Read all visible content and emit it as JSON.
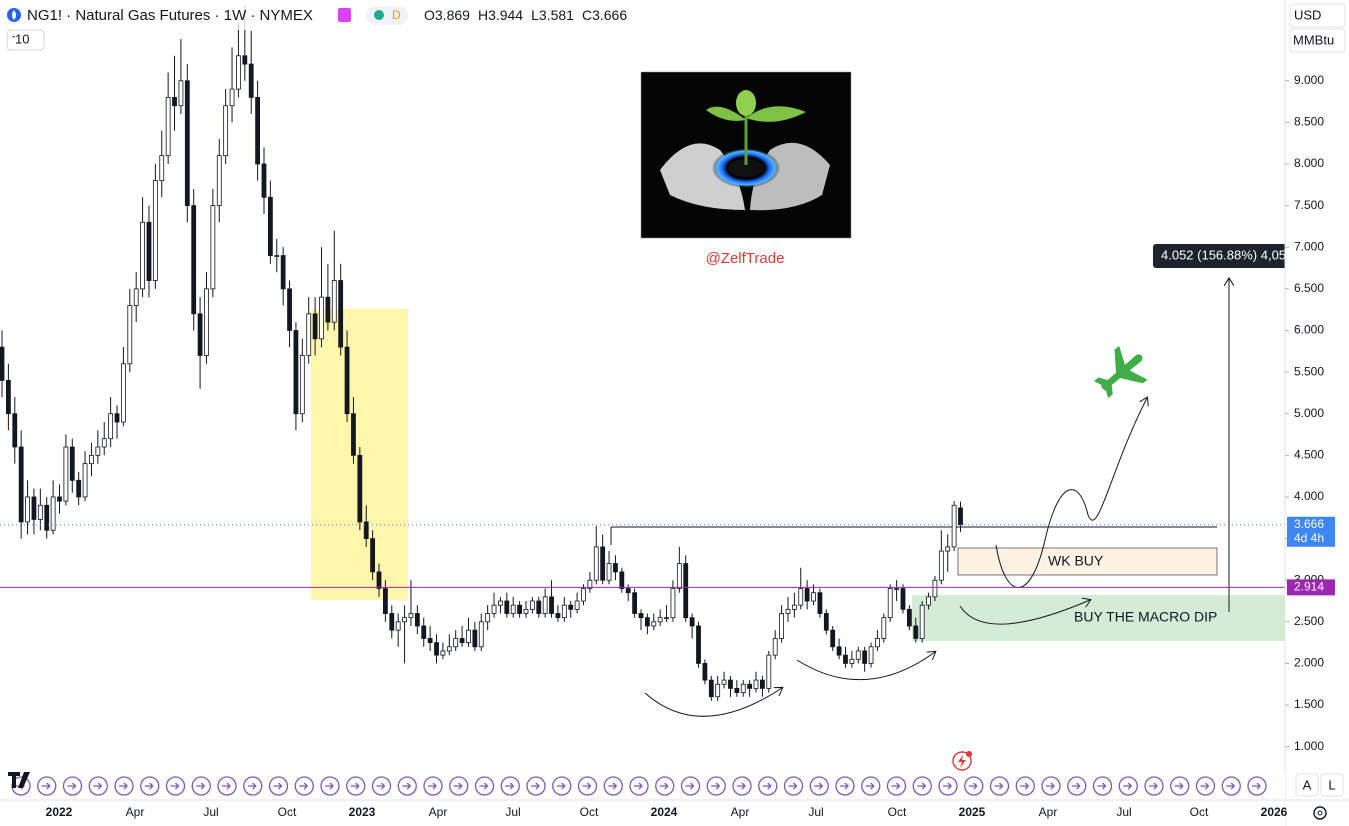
{
  "chart_data": {
    "type": "candlestick",
    "title": "NG1! · Natural Gas Futures · 1W · NYMEX",
    "badge": "D",
    "interval_box": "10",
    "currency": "USD",
    "unit": "MMBtu",
    "ohlc_legend": [
      {
        "label": "O",
        "value": 3.869
      },
      {
        "label": "H",
        "value": 3.944
      },
      {
        "label": "L",
        "value": 3.581
      },
      {
        "label": "C",
        "value": 3.666
      }
    ],
    "author": "@ZelfTrade",
    "annotations": [
      "WK BUY",
      "BUY THE MACRO DIP"
    ],
    "measure_label": "4.052 (156.88%) 4,05",
    "last_price": 3.666,
    "countdown": "4d 4h",
    "horizontal_line": 2.914,
    "ylim": [
      0.72,
      9.97
    ],
    "yticks": [
      {
        "value": 1,
        "label": "1.000"
      },
      {
        "value": 1.5,
        "label": "1.500"
      },
      {
        "value": 2,
        "label": "2.000"
      },
      {
        "value": 2.5,
        "label": "2.500"
      },
      {
        "value": 3,
        "label": "3.000"
      },
      {
        "value": 3.5,
        "label": "3.500"
      },
      {
        "value": 4,
        "label": "4.000"
      },
      {
        "value": 4.5,
        "label": "4.500"
      },
      {
        "value": 5,
        "label": "5.000"
      },
      {
        "value": 5.5,
        "label": "5.500"
      },
      {
        "value": 6,
        "label": "6.000"
      },
      {
        "value": 6.5,
        "label": "6.500"
      },
      {
        "value": 7,
        "label": "7.000"
      },
      {
        "value": 7.5,
        "label": "7.500"
      },
      {
        "value": 8,
        "label": "8.000"
      },
      {
        "value": 8.5,
        "label": "8.500"
      },
      {
        "value": 9,
        "label": "9.000"
      }
    ],
    "x_tick_labels": [
      "2022",
      "Apr",
      "Jul",
      "Oct",
      "2023",
      "Apr",
      "Jul",
      "Oct",
      "2024",
      "Apr",
      "Jul",
      "Oct",
      "2025",
      "Apr",
      "Jul",
      "Oct",
      "2026"
    ],
    "scale_buttons": [
      "A",
      "L"
    ],
    "candles": [
      [
        5.8,
        6.0,
        5.2,
        5.4
      ],
      [
        5.4,
        5.6,
        4.8,
        5.0
      ],
      [
        5.0,
        5.2,
        4.4,
        4.6
      ],
      [
        4.6,
        4.8,
        3.5,
        3.7
      ],
      [
        3.7,
        4.2,
        3.55,
        4.0
      ],
      [
        4.0,
        4.1,
        3.55,
        3.73
      ],
      [
        3.73,
        4.1,
        3.6,
        3.9
      ],
      [
        3.9,
        4.0,
        3.5,
        3.6
      ],
      [
        3.6,
        4.2,
        3.55,
        4.0
      ],
      [
        4.0,
        4.15,
        3.8,
        3.95
      ],
      [
        3.95,
        4.75,
        3.9,
        4.6
      ],
      [
        4.6,
        4.7,
        4.05,
        4.2
      ],
      [
        4.2,
        4.3,
        3.9,
        4.0
      ],
      [
        4.0,
        4.55,
        3.95,
        4.4
      ],
      [
        4.4,
        4.65,
        4.25,
        4.5
      ],
      [
        4.5,
        4.8,
        4.4,
        4.6
      ],
      [
        4.6,
        4.9,
        4.5,
        4.7
      ],
      [
        4.7,
        5.2,
        4.6,
        5.0
      ],
      [
        5.0,
        5.1,
        4.7,
        4.9
      ],
      [
        4.9,
        5.8,
        4.85,
        5.6
      ],
      [
        5.6,
        6.5,
        5.5,
        6.3
      ],
      [
        6.3,
        6.7,
        6.1,
        6.5
      ],
      [
        6.5,
        7.6,
        6.4,
        7.3
      ],
      [
        7.3,
        7.5,
        6.4,
        6.6
      ],
      [
        6.6,
        8.0,
        6.5,
        7.8
      ],
      [
        7.8,
        8.4,
        7.6,
        8.1
      ],
      [
        8.1,
        9.1,
        8.0,
        8.8
      ],
      [
        8.8,
        9.3,
        8.4,
        8.7
      ],
      [
        8.7,
        9.5,
        8.6,
        9.0
      ],
      [
        9.0,
        9.2,
        7.3,
        7.5
      ],
      [
        7.5,
        7.7,
        6.0,
        6.2
      ],
      [
        6.2,
        6.4,
        5.3,
        5.7
      ],
      [
        5.7,
        6.7,
        5.6,
        6.5
      ],
      [
        6.5,
        7.7,
        6.4,
        7.5
      ],
      [
        7.5,
        8.3,
        7.3,
        8.1
      ],
      [
        8.1,
        8.9,
        8.0,
        8.7
      ],
      [
        8.7,
        9.4,
        8.5,
        8.9
      ],
      [
        8.9,
        9.7,
        8.8,
        9.3
      ],
      [
        9.3,
        9.9,
        9.0,
        9.2
      ],
      [
        9.2,
        9.6,
        8.6,
        8.8
      ],
      [
        8.8,
        9.0,
        7.8,
        8.0
      ],
      [
        8.0,
        8.2,
        7.4,
        7.6
      ],
      [
        7.6,
        7.8,
        6.8,
        6.9
      ],
      [
        6.9,
        7.1,
        6.7,
        6.9
      ],
      [
        6.9,
        7.0,
        6.3,
        6.5
      ],
      [
        6.5,
        6.6,
        5.8,
        6.0
      ],
      [
        6.0,
        6.1,
        4.8,
        5.0
      ],
      [
        5.0,
        5.9,
        4.9,
        5.7
      ],
      [
        5.7,
        6.4,
        5.6,
        6.2
      ],
      [
        6.2,
        6.4,
        5.7,
        5.9
      ],
      [
        5.9,
        7.0,
        5.8,
        6.4
      ],
      [
        6.4,
        6.8,
        6.0,
        6.1
      ],
      [
        6.1,
        7.2,
        6.0,
        6.6
      ],
      [
        6.6,
        6.8,
        5.7,
        5.8
      ],
      [
        5.8,
        6.0,
        4.9,
        5.0
      ],
      [
        5.0,
        5.2,
        4.4,
        4.5
      ],
      [
        4.5,
        4.6,
        3.6,
        3.7
      ],
      [
        3.7,
        3.9,
        3.4,
        3.5
      ],
      [
        3.5,
        3.6,
        3.0,
        3.1
      ],
      [
        3.1,
        3.2,
        2.8,
        2.9
      ],
      [
        2.9,
        3.0,
        2.5,
        2.6
      ],
      [
        2.6,
        2.7,
        2.3,
        2.4
      ],
      [
        2.4,
        2.6,
        2.2,
        2.5
      ],
      [
        2.5,
        2.7,
        2.0,
        2.55
      ],
      [
        2.55,
        3.0,
        2.45,
        2.6
      ],
      [
        2.6,
        2.7,
        2.35,
        2.45
      ],
      [
        2.45,
        2.55,
        2.2,
        2.3
      ],
      [
        2.3,
        2.45,
        2.15,
        2.25
      ],
      [
        2.25,
        2.35,
        2.0,
        2.1
      ],
      [
        2.1,
        2.25,
        2.05,
        2.15
      ],
      [
        2.15,
        2.35,
        2.1,
        2.2
      ],
      [
        2.2,
        2.4,
        2.15,
        2.3
      ],
      [
        2.3,
        2.45,
        2.2,
        2.25
      ],
      [
        2.25,
        2.55,
        2.2,
        2.4
      ],
      [
        2.4,
        2.5,
        2.15,
        2.2
      ],
      [
        2.2,
        2.6,
        2.15,
        2.5
      ],
      [
        2.5,
        2.7,
        2.4,
        2.6
      ],
      [
        2.6,
        2.85,
        2.55,
        2.7
      ],
      [
        2.7,
        2.8,
        2.6,
        2.75
      ],
      [
        2.75,
        2.85,
        2.55,
        2.6
      ],
      [
        2.6,
        2.8,
        2.55,
        2.7
      ],
      [
        2.7,
        2.75,
        2.55,
        2.6
      ],
      [
        2.6,
        2.75,
        2.55,
        2.65
      ],
      [
        2.65,
        2.8,
        2.6,
        2.75
      ],
      [
        2.75,
        2.8,
        2.55,
        2.6
      ],
      [
        2.6,
        2.9,
        2.55,
        2.8
      ],
      [
        2.8,
        3.0,
        2.55,
        2.6
      ],
      [
        2.6,
        2.7,
        2.5,
        2.55
      ],
      [
        2.55,
        2.8,
        2.5,
        2.7
      ],
      [
        2.7,
        2.75,
        2.55,
        2.65
      ],
      [
        2.65,
        2.85,
        2.6,
        2.75
      ],
      [
        2.75,
        2.95,
        2.7,
        2.9
      ],
      [
        2.9,
        3.1,
        2.85,
        3.0
      ],
      [
        3.0,
        3.65,
        2.95,
        3.4
      ],
      [
        3.4,
        3.55,
        2.95,
        3.0
      ],
      [
        3.0,
        3.35,
        2.95,
        3.2
      ],
      [
        3.2,
        3.3,
        3.0,
        3.1
      ],
      [
        3.1,
        3.15,
        2.85,
        2.9
      ],
      [
        2.9,
        2.95,
        2.75,
        2.85
      ],
      [
        2.85,
        2.9,
        2.55,
        2.6
      ],
      [
        2.6,
        2.65,
        2.4,
        2.55
      ],
      [
        2.55,
        2.6,
        2.35,
        2.45
      ],
      [
        2.45,
        2.6,
        2.4,
        2.5
      ],
      [
        2.5,
        2.65,
        2.45,
        2.55
      ],
      [
        2.55,
        2.7,
        2.5,
        2.55
      ],
      [
        2.55,
        3.0,
        2.5,
        2.9
      ],
      [
        2.9,
        3.4,
        2.85,
        3.2
      ],
      [
        3.2,
        3.3,
        2.5,
        2.55
      ],
      [
        2.55,
        2.6,
        2.3,
        2.45
      ],
      [
        2.45,
        2.5,
        1.95,
        2.0
      ],
      [
        2.0,
        2.05,
        1.75,
        1.8
      ],
      [
        1.8,
        1.85,
        1.55,
        1.6
      ],
      [
        1.6,
        1.85,
        1.55,
        1.75
      ],
      [
        1.75,
        1.9,
        1.7,
        1.8
      ],
      [
        1.8,
        1.85,
        1.6,
        1.7
      ],
      [
        1.7,
        1.8,
        1.6,
        1.65
      ],
      [
        1.65,
        1.8,
        1.6,
        1.75
      ],
      [
        1.75,
        1.8,
        1.6,
        1.7
      ],
      [
        1.7,
        1.9,
        1.65,
        1.8
      ],
      [
        1.8,
        1.85,
        1.6,
        1.7
      ],
      [
        1.7,
        2.15,
        1.65,
        2.1
      ],
      [
        2.1,
        2.4,
        2.05,
        2.3
      ],
      [
        2.3,
        2.7,
        2.25,
        2.6
      ],
      [
        2.6,
        2.8,
        2.5,
        2.65
      ],
      [
        2.65,
        2.85,
        2.55,
        2.7
      ],
      [
        2.7,
        3.15,
        2.65,
        2.9
      ],
      [
        2.9,
        3.0,
        2.65,
        2.75
      ],
      [
        2.75,
        2.95,
        2.7,
        2.85
      ],
      [
        2.85,
        2.9,
        2.55,
        2.6
      ],
      [
        2.6,
        2.65,
        2.35,
        2.4
      ],
      [
        2.4,
        2.45,
        2.15,
        2.2
      ],
      [
        2.2,
        2.3,
        2.05,
        2.1
      ],
      [
        2.1,
        2.2,
        1.95,
        2.0
      ],
      [
        2.0,
        2.15,
        1.95,
        2.05
      ],
      [
        2.05,
        2.2,
        2.0,
        2.15
      ],
      [
        2.15,
        2.2,
        1.9,
        2.0
      ],
      [
        2.0,
        2.25,
        1.95,
        2.2
      ],
      [
        2.2,
        2.4,
        2.15,
        2.3
      ],
      [
        2.3,
        2.6,
        2.25,
        2.55
      ],
      [
        2.55,
        2.95,
        2.5,
        2.9
      ],
      [
        2.9,
        3.0,
        2.75,
        2.9
      ],
      [
        2.9,
        2.95,
        2.6,
        2.65
      ],
      [
        2.65,
        2.7,
        2.4,
        2.45
      ],
      [
        2.45,
        2.55,
        2.25,
        2.3
      ],
      [
        2.3,
        2.75,
        2.25,
        2.7
      ],
      [
        2.7,
        2.85,
        2.65,
        2.8
      ],
      [
        2.8,
        3.05,
        2.75,
        3.0
      ],
      [
        3.0,
        3.6,
        2.95,
        3.35
      ],
      [
        3.35,
        3.55,
        3.1,
        3.4
      ],
      [
        3.4,
        3.95,
        3.35,
        3.9
      ],
      [
        3.869,
        3.944,
        3.581,
        3.666
      ]
    ]
  }
}
